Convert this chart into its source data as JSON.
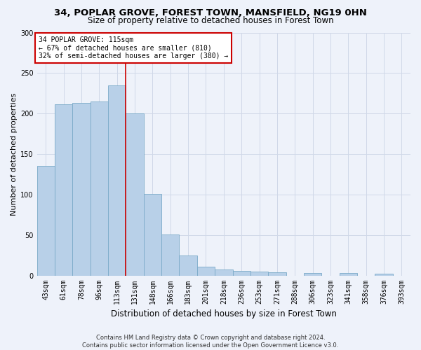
{
  "title": "34, POPLAR GROVE, FOREST TOWN, MANSFIELD, NG19 0HN",
  "subtitle": "Size of property relative to detached houses in Forest Town",
  "xlabel": "Distribution of detached houses by size in Forest Town",
  "ylabel": "Number of detached properties",
  "categories": [
    "43sqm",
    "61sqm",
    "78sqm",
    "96sqm",
    "113sqm",
    "131sqm",
    "148sqm",
    "166sqm",
    "183sqm",
    "201sqm",
    "218sqm",
    "236sqm",
    "253sqm",
    "271sqm",
    "288sqm",
    "306sqm",
    "323sqm",
    "341sqm",
    "358sqm",
    "376sqm",
    "393sqm"
  ],
  "values": [
    135,
    211,
    213,
    215,
    235,
    200,
    101,
    51,
    25,
    11,
    7,
    6,
    5,
    4,
    0,
    3,
    0,
    3,
    0,
    2,
    0
  ],
  "bar_color": "#b8d0e8",
  "bar_edge_color": "#7aaac8",
  "annotation_text_line1": "34 POPLAR GROVE: 115sqm",
  "annotation_text_line2": "← 67% of detached houses are smaller (810)",
  "annotation_text_line3": "32% of semi-detached houses are larger (380) →",
  "annotation_box_color": "#ffffff",
  "annotation_box_edge_color": "#cc0000",
  "red_line_color": "#cc0000",
  "grid_color": "#d0d8e8",
  "background_color": "#eef2fa",
  "footer_line1": "Contains HM Land Registry data © Crown copyright and database right 2024.",
  "footer_line2": "Contains public sector information licensed under the Open Government Licence v3.0.",
  "ylim": [
    0,
    300
  ],
  "yticks": [
    0,
    50,
    100,
    150,
    200,
    250,
    300
  ],
  "red_line_x": 4.5,
  "title_fontsize": 9.5,
  "subtitle_fontsize": 8.5,
  "ylabel_fontsize": 8,
  "xlabel_fontsize": 8.5,
  "tick_fontsize": 7,
  "annot_fontsize": 7,
  "footer_fontsize": 6
}
